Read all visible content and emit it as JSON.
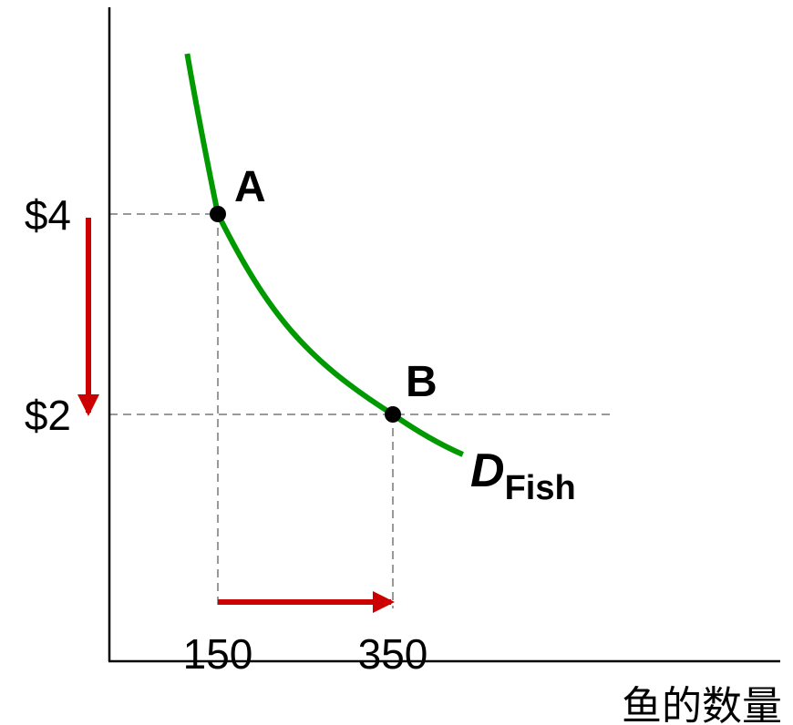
{
  "chart_data": {
    "type": "line",
    "title": "",
    "xlabel": "鱼的数量",
    "ylabel": "",
    "price_ticks": [
      {
        "value": 4,
        "label": "$4"
      },
      {
        "value": 2,
        "label": "$2"
      }
    ],
    "quantity_ticks": [
      {
        "value": 150,
        "label": "150"
      },
      {
        "value": 350,
        "label": "350"
      }
    ],
    "points": [
      {
        "label": "A",
        "x": 150,
        "y": 4
      },
      {
        "label": "B",
        "x": 350,
        "y": 2
      }
    ],
    "curve": {
      "name_main": "D",
      "name_sub": "Fish",
      "color": "#009900",
      "points": [
        [
          115,
          5.6
        ],
        [
          150,
          4
        ],
        [
          350,
          2
        ],
        [
          430,
          1.6
        ]
      ]
    },
    "arrows": {
      "color": "#cc0000",
      "price": {
        "from": 4,
        "to": 2
      },
      "quantity": {
        "from": 150,
        "to": 350
      }
    },
    "grid": false,
    "legend": "none"
  }
}
